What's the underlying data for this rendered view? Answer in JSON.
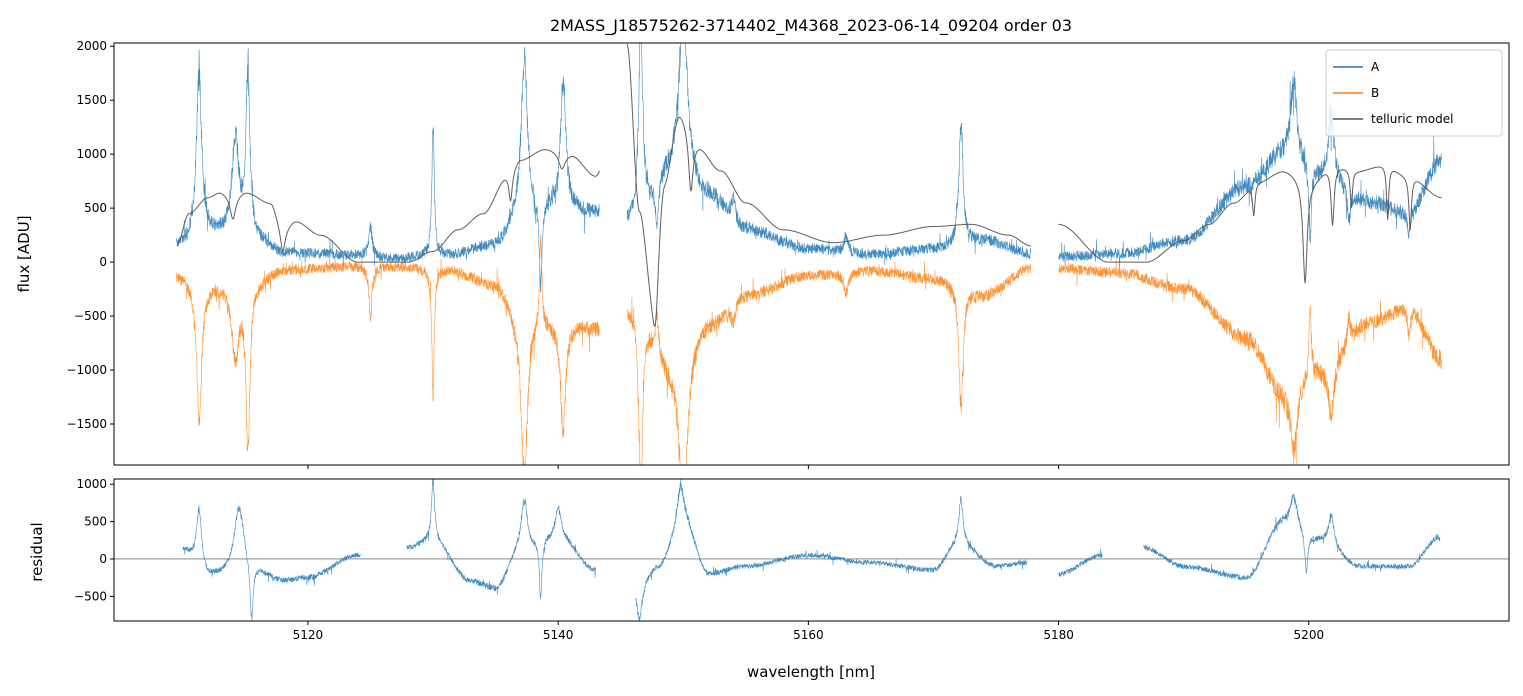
{
  "chart_data": [
    {
      "panel": "top",
      "type": "line",
      "title": "2MASS_J18575262-3714402_M4368_2023-06-14_09204  order 03",
      "xlabel": "",
      "ylabel": "flux [ADU]",
      "xlim": [
        5104.5,
        5216.0
      ],
      "ylim": [
        -1880,
        2030
      ],
      "xticks": [
        5120,
        5140,
        5160,
        5180,
        5200
      ],
      "xtick_labels_shown": false,
      "yticks": [
        -1500,
        -1000,
        -500,
        0,
        500,
        1000,
        1500,
        2000
      ],
      "ytick_labels": [
        "−1500",
        "−1000",
        "−500",
        "0",
        "500",
        "1000",
        "1500",
        "2000"
      ],
      "legend_position": "top-right",
      "grid": false,
      "segments": [
        [
          5109.5,
          5124.5
        ],
        [
          5124.5,
          5143.3
        ],
        [
          5145.5,
          5177.8
        ],
        [
          5180.0,
          5210.6
        ]
      ],
      "series": [
        {
          "name": "A",
          "color": "#1f77b4",
          "style": "noisy",
          "baseline": [
            [
              5109.5,
              150
            ],
            [
              5112,
              250
            ],
            [
              5116,
              180
            ],
            [
              5118,
              80
            ],
            [
              5124,
              60
            ],
            [
              5127,
              30
            ],
            [
              5131,
              60
            ],
            [
              5135,
              150
            ],
            [
              5137,
              400
            ],
            [
              5140,
              500
            ],
            [
              5143,
              450
            ],
            [
              5146,
              350
            ],
            [
              5149,
              800
            ],
            [
              5152,
              600
            ],
            [
              5155,
              300
            ],
            [
              5160,
              120
            ],
            [
              5165,
              70
            ],
            [
              5170,
              120
            ],
            [
              5174,
              200
            ],
            [
              5177.8,
              80
            ],
            [
              5180,
              50
            ],
            [
              5185,
              80
            ],
            [
              5190,
              200
            ],
            [
              5195,
              700
            ],
            [
              5198,
              1000
            ],
            [
              5201,
              800
            ],
            [
              5205,
              550
            ],
            [
              5208,
              450
            ],
            [
              5210.6,
              950
            ]
          ],
          "features": [
            [
              5111.3,
              1500,
              0.25
            ],
            [
              5114.2,
              900,
              0.35
            ],
            [
              5115.2,
              1500,
              0.2
            ],
            [
              5125.0,
              280,
              0.15
            ],
            [
              5130.0,
              1150,
              0.12
            ],
            [
              5137.3,
              1500,
              0.3
            ],
            [
              5138.6,
              -800,
              0.12
            ],
            [
              5140.4,
              1200,
              0.25
            ],
            [
              5146.6,
              1800,
              0.2
            ],
            [
              5147.9,
              -450,
              0.15
            ],
            [
              5150.0,
              1600,
              0.4
            ],
            [
              5154.0,
              200,
              0.2
            ],
            [
              5163.0,
              150,
              0.2
            ],
            [
              5172.2,
              1100,
              0.2
            ],
            [
              5198.8,
              700,
              0.3
            ],
            [
              5200.1,
              -700,
              0.12
            ],
            [
              5201.8,
              600,
              0.25
            ],
            [
              5203.2,
              -300,
              0.15
            ],
            [
              5208.0,
              -200,
              0.12
            ]
          ],
          "noise": 45,
          "clip": [
            -1880,
            2030
          ]
        },
        {
          "name": "B",
          "color": "#ff7f0e",
          "style": "noisy",
          "baseline": [
            [
              5109.5,
              -120
            ],
            [
              5112,
              -200
            ],
            [
              5116,
              -150
            ],
            [
              5118,
              -60
            ],
            [
              5124,
              -40
            ],
            [
              5127,
              -40
            ],
            [
              5131,
              -60
            ],
            [
              5135,
              -200
            ],
            [
              5137,
              -500
            ],
            [
              5140,
              -550
            ],
            [
              5143,
              -600
            ],
            [
              5146,
              -400
            ],
            [
              5149,
              -900
            ],
            [
              5152,
              -550
            ],
            [
              5155,
              -300
            ],
            [
              5160,
              -120
            ],
            [
              5165,
              -80
            ],
            [
              5170,
              -150
            ],
            [
              5174,
              -300
            ],
            [
              5177.8,
              -60
            ],
            [
              5180,
              -60
            ],
            [
              5185,
              -100
            ],
            [
              5190,
              -250
            ],
            [
              5195,
              -700
            ],
            [
              5198,
              -1200
            ],
            [
              5201,
              -1000
            ],
            [
              5205,
              -550
            ],
            [
              5208,
              -420
            ],
            [
              5210.6,
              -900
            ]
          ],
          "features": [
            [
              5111.3,
              -1250,
              0.25
            ],
            [
              5114.2,
              -700,
              0.35
            ],
            [
              5115.2,
              -1500,
              0.2
            ],
            [
              5125.0,
              -450,
              0.15
            ],
            [
              5130.0,
              -1150,
              0.12
            ],
            [
              5137.3,
              -1500,
              0.3
            ],
            [
              5138.6,
              850,
              0.12
            ],
            [
              5140.4,
              -1000,
              0.25
            ],
            [
              5146.6,
              -1600,
              0.2
            ],
            [
              5147.9,
              350,
              0.15
            ],
            [
              5150.0,
              -1500,
              0.4
            ],
            [
              5154.0,
              -200,
              0.2
            ],
            [
              5163.0,
              -200,
              0.2
            ],
            [
              5172.2,
              -1100,
              0.2
            ],
            [
              5198.8,
              -600,
              0.3
            ],
            [
              5200.1,
              650,
              0.12
            ],
            [
              5201.8,
              -500,
              0.25
            ],
            [
              5203.2,
              250,
              0.15
            ],
            [
              5208.0,
              -300,
              0.12
            ]
          ],
          "noise": 45,
          "clip": [
            -1880,
            2030
          ]
        },
        {
          "name": "telluric model",
          "color": "#555555",
          "style": "smooth",
          "baseline": [
            [
              5109.5,
              150
            ],
            [
              5110.5,
              450
            ],
            [
              5112,
              600
            ],
            [
              5113,
              650
            ],
            [
              5114,
              600
            ],
            [
              5115,
              650
            ],
            [
              5117,
              550
            ],
            [
              5118,
              300
            ],
            [
              5119,
              380
            ],
            [
              5121,
              250
            ],
            [
              5124,
              0
            ],
            [
              5128,
              0
            ],
            [
              5130,
              100
            ],
            [
              5132,
              300
            ],
            [
              5134,
              450
            ],
            [
              5136,
              800
            ],
            [
              5137,
              950
            ],
            [
              5139,
              1050
            ],
            [
              5141,
              1000
            ],
            [
              5143,
              800
            ],
            [
              5145.5,
              2030
            ],
            [
              5146.5,
              500
            ],
            [
              5147.5,
              -150
            ],
            [
              5148.5,
              800
            ],
            [
              5149.7,
              1380
            ],
            [
              5151,
              1100
            ],
            [
              5153,
              850
            ],
            [
              5155,
              550
            ],
            [
              5158,
              300
            ],
            [
              5162,
              180
            ],
            [
              5166,
              250
            ],
            [
              5170,
              330
            ],
            [
              5173,
              350
            ],
            [
              5176,
              250
            ],
            [
              5177.8,
              150
            ],
            [
              5180,
              350
            ],
            [
              5184,
              0
            ],
            [
              5187,
              0
            ],
            [
              5190,
              200
            ],
            [
              5192,
              350
            ],
            [
              5194,
              550
            ],
            [
              5196,
              750
            ],
            [
              5198,
              850
            ],
            [
              5200,
              750
            ],
            [
              5202,
              900
            ],
            [
              5204,
              850
            ],
            [
              5206,
              900
            ],
            [
              5208,
              800
            ],
            [
              5210.6,
              600
            ]
          ],
          "dips": [
            [
              5114.0,
              200,
              0.25
            ],
            [
              5118.0,
              200,
              0.2
            ],
            [
              5136.2,
              250,
              0.15
            ],
            [
              5140.3,
              150,
              0.3
            ],
            [
              5147.8,
              600,
              0.3
            ],
            [
              5150.6,
              500,
              0.2
            ],
            [
              5195.6,
              300,
              0.12
            ],
            [
              5199.7,
              950,
              0.2
            ],
            [
              5201.9,
              550,
              0.15
            ],
            [
              5203.4,
              350,
              0.1
            ],
            [
              5206.3,
              500,
              0.1
            ],
            [
              5208.1,
              500,
              0.12
            ]
          ]
        }
      ]
    },
    {
      "panel": "bottom",
      "type": "line",
      "title": "",
      "xlabel": "wavelength [nm]",
      "ylabel": "residual",
      "xlim": [
        5104.5,
        5216.0
      ],
      "ylim": [
        -830,
        1070
      ],
      "xticks": [
        5120,
        5140,
        5160,
        5180,
        5200
      ],
      "xtick_labels": [
        "5120",
        "5140",
        "5160",
        "5180",
        "5200"
      ],
      "yticks": [
        -500,
        0,
        500,
        1000
      ],
      "ytick_labels": [
        "−500",
        "0",
        "500",
        "1000"
      ],
      "zero_line": true,
      "grid": false,
      "segments": [
        [
          5110.0,
          5124.2
        ],
        [
          5127.9,
          5143.0
        ],
        [
          5146.2,
          5177.5
        ],
        [
          5180.0,
          5183.5
        ],
        [
          5186.8,
          5210.5
        ]
      ],
      "series": [
        {
          "name": "",
          "color": "#1f77b4",
          "style": "noisy",
          "baseline": [
            [
              5110,
              100
            ],
            [
              5112,
              -250
            ],
            [
              5116,
              -200
            ],
            [
              5118,
              -300
            ],
            [
              5120,
              -250
            ],
            [
              5124,
              50
            ],
            [
              5128,
              150
            ],
            [
              5130,
              250
            ],
            [
              5133,
              -300
            ],
            [
              5135,
              -400
            ],
            [
              5137,
              100
            ],
            [
              5140,
              300
            ],
            [
              5143,
              -150
            ],
            [
              5146.2,
              -300
            ],
            [
              5148,
              -100
            ],
            [
              5150,
              500
            ],
            [
              5152,
              -200
            ],
            [
              5155,
              -100
            ],
            [
              5160,
              50
            ],
            [
              5165,
              -50
            ],
            [
              5170,
              -150
            ],
            [
              5172,
              200
            ],
            [
              5175,
              -100
            ],
            [
              5177.5,
              -50
            ],
            [
              5180,
              -200
            ],
            [
              5183.5,
              50
            ],
            [
              5186.8,
              150
            ],
            [
              5190,
              -100
            ],
            [
              5195,
              -250
            ],
            [
              5198,
              500
            ],
            [
              5201,
              250
            ],
            [
              5204,
              -100
            ],
            [
              5208,
              -100
            ],
            [
              5210.5,
              300
            ]
          ],
          "features": [
            [
              5111.3,
              800,
              0.25
            ],
            [
              5114.5,
              900,
              0.5
            ],
            [
              5115.5,
              -800,
              0.15
            ],
            [
              5130.0,
              800,
              0.15
            ],
            [
              5137.3,
              700,
              0.3
            ],
            [
              5138.6,
              -800,
              0.12
            ],
            [
              5140.0,
              400,
              0.25
            ],
            [
              5146.5,
              -500,
              0.3
            ],
            [
              5149.8,
              500,
              0.3
            ],
            [
              5172.2,
              600,
              0.2
            ],
            [
              5198.8,
              400,
              0.3
            ],
            [
              5199.8,
              -550,
              0.15
            ],
            [
              5201.8,
              400,
              0.25
            ]
          ],
          "noise": 30,
          "clip": [
            -830,
            1070
          ]
        }
      ]
    }
  ]
}
